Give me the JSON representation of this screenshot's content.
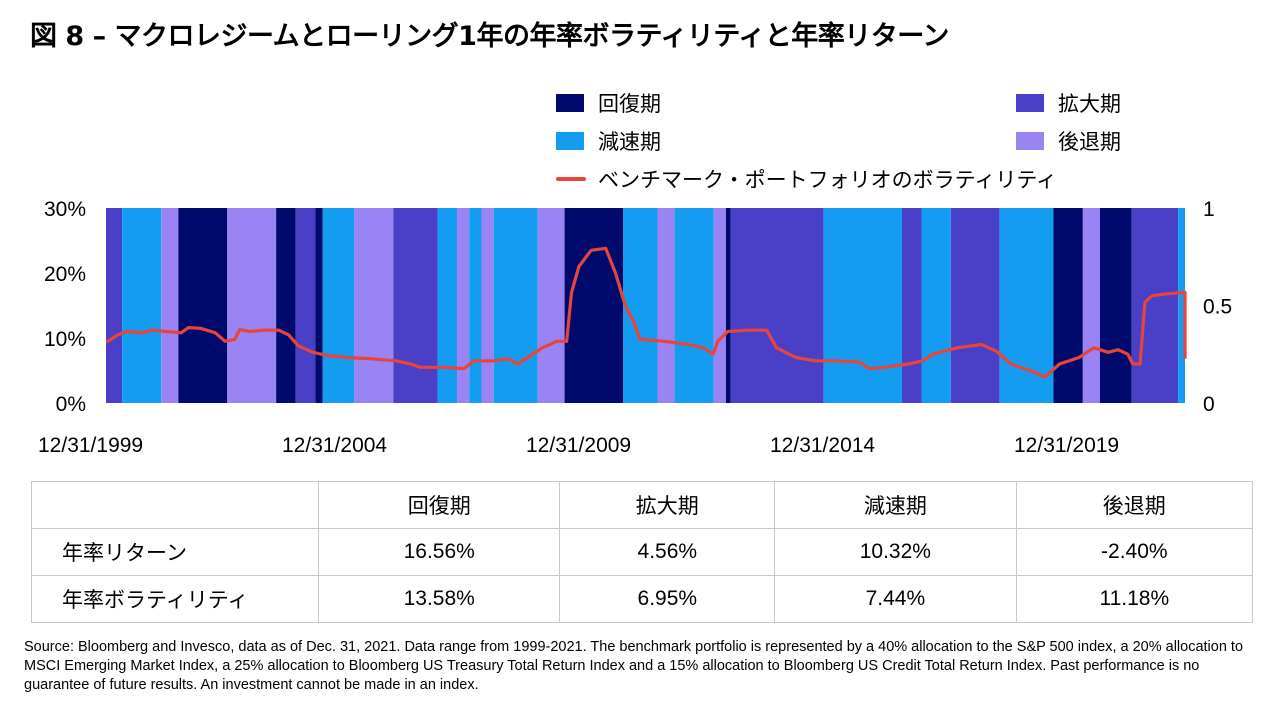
{
  "title": "図 8 – マクロレジームとローリング1年の年率ボラティリティと年率リターン",
  "colors": {
    "recovery": "#000a6c",
    "expansion": "#4a40c8",
    "slowdown": "#149cf0",
    "contraction": "#9a84f4",
    "volatility_line": "#e8443a"
  },
  "legend": {
    "recovery": "回復期",
    "expansion": "拡大期",
    "slowdown": "減速期",
    "contraction": "後退期",
    "volatility": "ベンチマーク・ポートフォリオのボラティリティ"
  },
  "chart_data": {
    "type": "line",
    "x_range": [
      "1999-12-31",
      "2021-12-31"
    ],
    "x_tick_labels": [
      "12/31/1999",
      "12/31/2004",
      "12/31/2009",
      "12/31/2014",
      "12/31/2019"
    ],
    "x_ticks": [
      1999.9167,
      2004.9167,
      2009.9167,
      2014.9167,
      2019.9167
    ],
    "left_axis": {
      "tick_labels": [
        "0%",
        "10%",
        "20%",
        "30%"
      ],
      "ticks": [
        0,
        10,
        20,
        30
      ],
      "ylim": [
        0,
        30
      ]
    },
    "right_axis": {
      "tick_labels": [
        "0",
        "0.5",
        "1"
      ],
      "ticks": [
        0,
        0.5,
        1
      ],
      "ylim": [
        0,
        1
      ]
    },
    "regimes": [
      {
        "start": 1999.92,
        "end": 2000.25,
        "regime": "expansion"
      },
      {
        "start": 2000.25,
        "end": 2001.05,
        "regime": "slowdown"
      },
      {
        "start": 2001.05,
        "end": 2001.4,
        "regime": "contraction"
      },
      {
        "start": 2001.4,
        "end": 2002.4,
        "regime": "recovery"
      },
      {
        "start": 2002.4,
        "end": 2003.4,
        "regime": "contraction"
      },
      {
        "start": 2003.4,
        "end": 2003.8,
        "regime": "recovery"
      },
      {
        "start": 2003.8,
        "end": 2004.2,
        "regime": "expansion"
      },
      {
        "start": 2004.2,
        "end": 2004.35,
        "regime": "recovery"
      },
      {
        "start": 2004.35,
        "end": 2005.0,
        "regime": "slowdown"
      },
      {
        "start": 2005.0,
        "end": 2005.8,
        "regime": "contraction"
      },
      {
        "start": 2005.8,
        "end": 2006.7,
        "regime": "expansion"
      },
      {
        "start": 2006.7,
        "end": 2007.1,
        "regime": "slowdown"
      },
      {
        "start": 2007.1,
        "end": 2007.35,
        "regime": "contraction"
      },
      {
        "start": 2007.35,
        "end": 2007.6,
        "regime": "slowdown"
      },
      {
        "start": 2007.6,
        "end": 2007.85,
        "regime": "contraction"
      },
      {
        "start": 2007.85,
        "end": 2008.75,
        "regime": "slowdown"
      },
      {
        "start": 2008.75,
        "end": 2009.3,
        "regime": "contraction"
      },
      {
        "start": 2009.3,
        "end": 2010.5,
        "regime": "recovery"
      },
      {
        "start": 2010.5,
        "end": 2011.2,
        "regime": "slowdown"
      },
      {
        "start": 2011.2,
        "end": 2011.55,
        "regime": "contraction"
      },
      {
        "start": 2011.55,
        "end": 2012.35,
        "regime": "slowdown"
      },
      {
        "start": 2012.35,
        "end": 2012.6,
        "regime": "contraction"
      },
      {
        "start": 2012.6,
        "end": 2012.7,
        "regime": "recovery"
      },
      {
        "start": 2012.7,
        "end": 2014.6,
        "regime": "expansion"
      },
      {
        "start": 2014.6,
        "end": 2016.2,
        "regime": "slowdown"
      },
      {
        "start": 2016.2,
        "end": 2016.6,
        "regime": "expansion"
      },
      {
        "start": 2016.6,
        "end": 2017.2,
        "regime": "slowdown"
      },
      {
        "start": 2017.2,
        "end": 2018.2,
        "regime": "expansion"
      },
      {
        "start": 2018.2,
        "end": 2019.3,
        "regime": "slowdown"
      },
      {
        "start": 2019.3,
        "end": 2019.9,
        "regime": "recovery"
      },
      {
        "start": 2019.9,
        "end": 2020.25,
        "regime": "contraction"
      },
      {
        "start": 2020.25,
        "end": 2020.9,
        "regime": "recovery"
      },
      {
        "start": 2020.9,
        "end": 2021.85,
        "regime": "expansion"
      },
      {
        "start": 2021.85,
        "end": 2021.99,
        "regime": "slowdown"
      }
    ],
    "series": [
      {
        "name": "ベンチマーク・ポートフォリオのボラティリティ",
        "points": [
          [
            1999.92,
            9.5
          ],
          [
            2000.1,
            9.5
          ],
          [
            2000.3,
            10.5
          ],
          [
            2000.5,
            11.0
          ],
          [
            2000.8,
            10.8
          ],
          [
            2001.0,
            11.2
          ],
          [
            2001.3,
            11.0
          ],
          [
            2001.6,
            10.8
          ],
          [
            2001.75,
            11.6
          ],
          [
            2002.0,
            11.5
          ],
          [
            2002.3,
            10.8
          ],
          [
            2002.5,
            9.5
          ],
          [
            2002.7,
            9.8
          ],
          [
            2002.8,
            11.3
          ],
          [
            2003.0,
            11.0
          ],
          [
            2003.3,
            11.2
          ],
          [
            2003.6,
            11.2
          ],
          [
            2003.8,
            10.5
          ],
          [
            2004.0,
            8.8
          ],
          [
            2004.3,
            7.8
          ],
          [
            2004.6,
            7.3
          ],
          [
            2005.0,
            7.0
          ],
          [
            2005.5,
            6.8
          ],
          [
            2006.0,
            6.5
          ],
          [
            2006.3,
            6.0
          ],
          [
            2006.5,
            5.5
          ],
          [
            2007.0,
            5.5
          ],
          [
            2007.4,
            5.3
          ],
          [
            2007.6,
            6.5
          ],
          [
            2008.0,
            6.5
          ],
          [
            2008.3,
            6.8
          ],
          [
            2008.5,
            6.0
          ],
          [
            2008.7,
            7.0
          ],
          [
            2009.0,
            8.5
          ],
          [
            2009.3,
            9.5
          ],
          [
            2009.5,
            9.5
          ],
          [
            2009.6,
            17.0
          ],
          [
            2009.75,
            21.0
          ],
          [
            2010.0,
            23.5
          ],
          [
            2010.3,
            23.8
          ],
          [
            2010.5,
            20.0
          ],
          [
            2010.7,
            15.0
          ],
          [
            2010.9,
            12.0
          ],
          [
            2011.0,
            9.8
          ],
          [
            2011.5,
            9.5
          ],
          [
            2012.0,
            9.0
          ],
          [
            2012.3,
            8.5
          ],
          [
            2012.5,
            7.5
          ],
          [
            2012.6,
            9.5
          ],
          [
            2012.8,
            11.0
          ],
          [
            2013.2,
            11.2
          ],
          [
            2013.6,
            11.2
          ],
          [
            2013.8,
            8.5
          ],
          [
            2014.2,
            7.0
          ],
          [
            2014.6,
            6.5
          ],
          [
            2015.0,
            6.5
          ],
          [
            2015.5,
            6.3
          ],
          [
            2015.7,
            5.3
          ],
          [
            2016.0,
            5.5
          ],
          [
            2016.5,
            6.0
          ],
          [
            2016.8,
            6.5
          ],
          [
            2017.0,
            7.5
          ],
          [
            2017.5,
            8.5
          ],
          [
            2018.0,
            9.0
          ],
          [
            2018.3,
            8.0
          ],
          [
            2018.6,
            6.0
          ],
          [
            2019.0,
            5.0
          ],
          [
            2019.3,
            4.0
          ],
          [
            2019.6,
            6.0
          ],
          [
            2020.0,
            7.0
          ],
          [
            2020.3,
            8.5
          ],
          [
            2020.6,
            7.8
          ],
          [
            2020.8,
            8.2
          ],
          [
            2021.0,
            7.5
          ],
          [
            2021.1,
            6.0
          ],
          [
            2021.25,
            6.0
          ],
          [
            2021.35,
            15.5
          ],
          [
            2021.5,
            16.5
          ],
          [
            2021.8,
            16.8
          ],
          [
            2022.2,
            17.0
          ],
          [
            2022.35,
            12.0
          ],
          [
            2022.5,
            8.5
          ],
          [
            2022.8,
            7.5
          ],
          [
            2023.0,
            7.0
          ],
          [
            2023.2,
            6.8
          ]
        ]
      }
    ]
  },
  "table": {
    "columns": [
      "回復期",
      "拡大期",
      "減速期",
      "後退期"
    ],
    "rows": [
      {
        "label": "年率リターン",
        "values": [
          "16.56%",
          "4.56%",
          "10.32%",
          "-2.40%"
        ]
      },
      {
        "label": "年率ボラティリティ",
        "values": [
          "13.58%",
          "6.95%",
          "7.44%",
          "11.18%"
        ]
      }
    ]
  },
  "source": "Source: Bloomberg and Invesco, data as of Dec. 31, 2021. Data range from 1999-2021. The benchmark portfolio is represented by a 40% allocation to the S&P 500 index, a 20% allocation to MSCI Emerging Market Index, a 25% allocation to Bloomberg US Treasury Total Return Index and a 15% allocation to Bloomberg US Credit Total Return Index. Past performance is no guarantee of future results. An investment cannot be made in an index."
}
